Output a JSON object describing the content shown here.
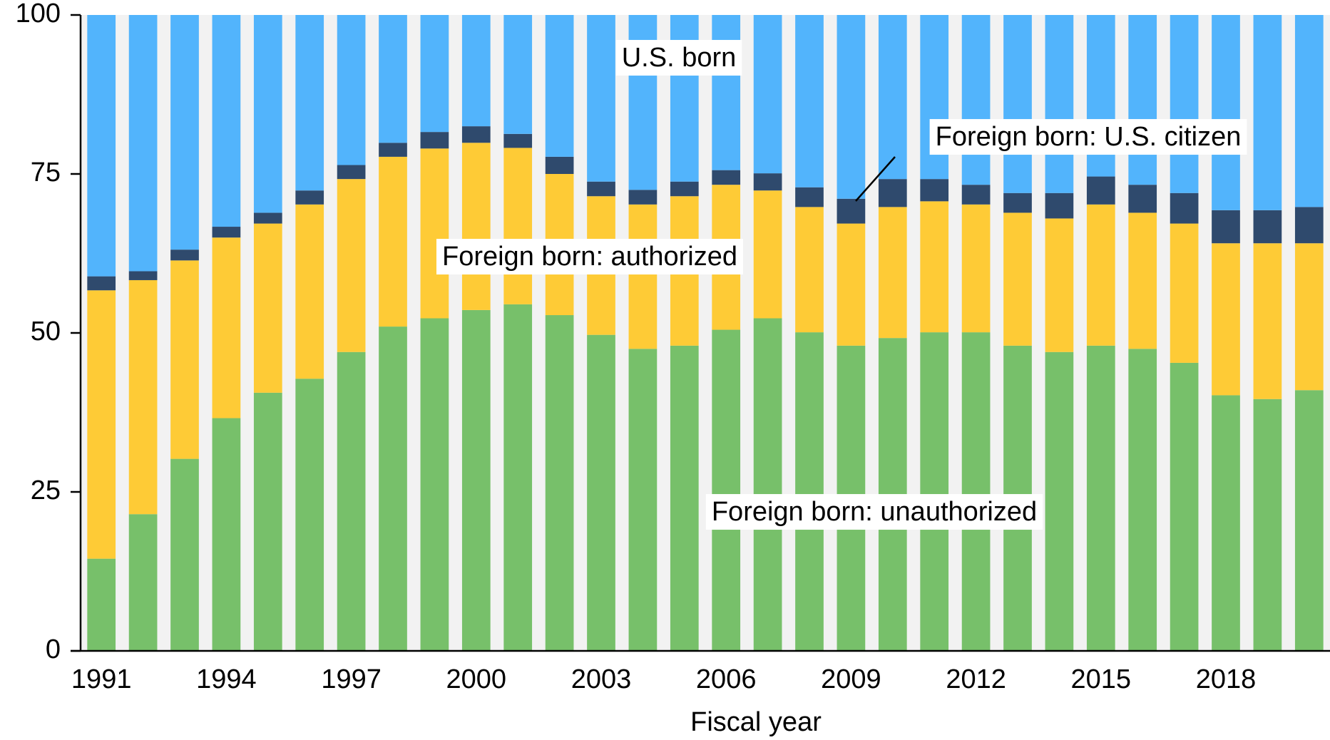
{
  "chart_data": {
    "type": "stacked_bar",
    "x_label": "Fiscal year",
    "categories": [
      "1991",
      null,
      null,
      "1994",
      null,
      null,
      "1997",
      null,
      null,
      "2000",
      null,
      null,
      "2003",
      null,
      null,
      "2006",
      null,
      null,
      "2009",
      null,
      null,
      "2012",
      null,
      null,
      "2015",
      null,
      null,
      "2018",
      null,
      null
    ],
    "series": [
      {
        "name": "Foreign born: unauthorized",
        "color": "#77c06a",
        "values": [
          14.5,
          21.5,
          30.2,
          36.6,
          40.6,
          42.8,
          47.0,
          51.0,
          52.3,
          53.6,
          54.5,
          52.8,
          49.7,
          47.5,
          48.0,
          50.5,
          52.3,
          50.1,
          48.0,
          49.2,
          50.1,
          50.1,
          48.0,
          47.0,
          48.0,
          47.5,
          45.3,
          40.2,
          39.6,
          41.0
        ]
      },
      {
        "name": "Foreign born: authorized",
        "color": "#fecb36",
        "values": [
          42.2,
          36.8,
          31.2,
          28.4,
          26.6,
          27.4,
          27.2,
          26.7,
          26.7,
          26.3,
          24.6,
          22.2,
          21.8,
          22.7,
          23.5,
          22.8,
          20.1,
          19.7,
          19.2,
          20.6,
          20.6,
          20.1,
          20.9,
          21.0,
          22.2,
          21.4,
          21.9,
          23.9,
          24.5,
          23.1
        ]
      },
      {
        "name": "Foreign born: U.S. citizen",
        "color": "#2f4a6d",
        "values": [
          2.2,
          1.4,
          1.7,
          1.7,
          1.7,
          2.2,
          2.2,
          2.2,
          2.6,
          2.6,
          2.2,
          2.7,
          2.3,
          2.3,
          2.3,
          2.3,
          2.7,
          3.1,
          3.9,
          4.4,
          3.5,
          3.1,
          3.1,
          4.0,
          4.4,
          4.4,
          4.8,
          5.2,
          5.2,
          5.7
        ]
      },
      {
        "name": "U.S. born",
        "color": "#52b4fc",
        "values": [
          41.1,
          40.3,
          36.9,
          33.3,
          31.1,
          27.6,
          23.6,
          20.1,
          18.4,
          17.5,
          18.7,
          22.3,
          26.2,
          27.5,
          26.2,
          24.4,
          24.9,
          27.1,
          28.9,
          25.8,
          25.8,
          26.7,
          28.0,
          28.0,
          25.4,
          26.7,
          28.0,
          30.7,
          30.7,
          30.2
        ]
      }
    ],
    "ylim": [
      0,
      100
    ],
    "yticks": [
      0,
      25,
      50,
      75,
      100
    ],
    "grid": false
  }
}
